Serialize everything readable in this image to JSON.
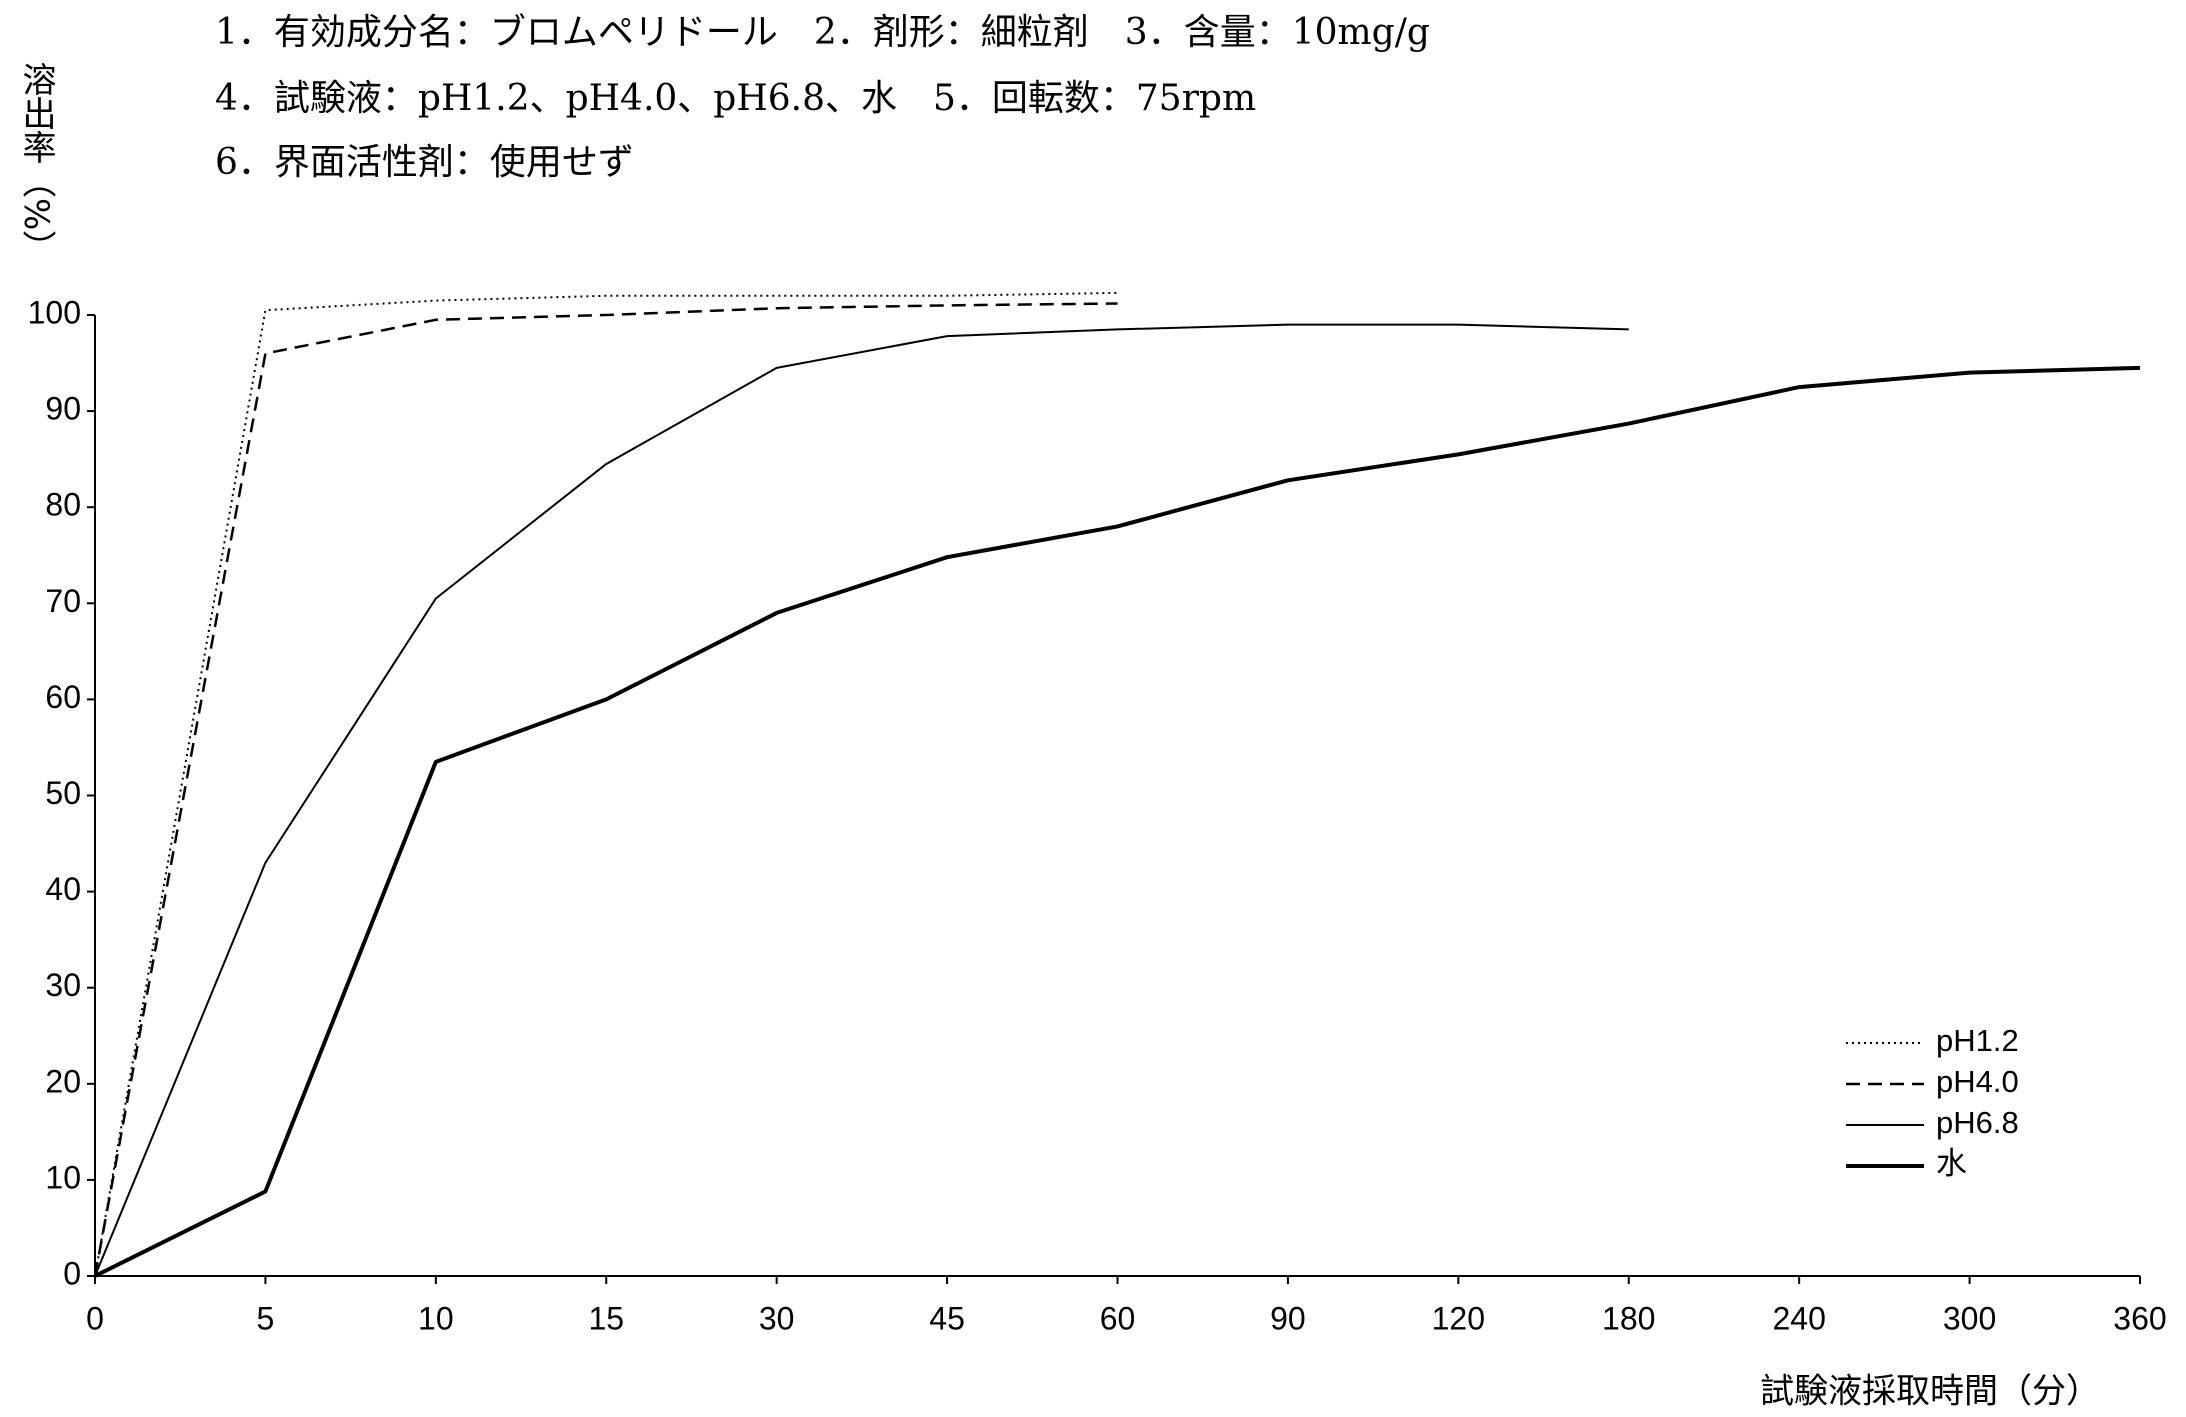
{
  "chart_data": {
    "type": "line",
    "header": [
      "1．有効成分名：ブロムペリドール　2．剤形：細粒剤　3．含量：10mg/g",
      "4．試験液：pH1.2、pH4.0、pH6.8、水　5．回転数：75rpm",
      "6．界面活性剤：使用せず"
    ],
    "y_label": "溶出率（%）",
    "x_label": "試験液採取時間（分）",
    "categories": [
      "0",
      "5",
      "10",
      "15",
      "30",
      "45",
      "60",
      "90",
      "120",
      "180",
      "240",
      "300",
      "360"
    ],
    "series": [
      {
        "name": "pH1.2",
        "color": "#000000",
        "style": "dotted",
        "width": 2,
        "values": [
          0,
          100.5,
          101.5,
          102,
          102,
          102,
          102.3,
          null,
          null,
          null,
          null,
          null,
          null
        ]
      },
      {
        "name": "pH4.0",
        "color": "#000000",
        "style": "dashed",
        "width": 2.5,
        "values": [
          0,
          96,
          99.5,
          100,
          100.7,
          101,
          101.2,
          null,
          null,
          null,
          null,
          null,
          null
        ]
      },
      {
        "name": "pH6.8",
        "color": "#000000",
        "style": "solid",
        "width": 2,
        "values": [
          0,
          43,
          70.5,
          84.5,
          94.5,
          97.8,
          98.5,
          99,
          99,
          98.5,
          null,
          null,
          null
        ]
      },
      {
        "name": "水",
        "color": "#000000",
        "style": "solid",
        "width": 4,
        "values": [
          0,
          8.8,
          53.5,
          60,
          69,
          74.8,
          78,
          82.8,
          85.5,
          88.7,
          92.5,
          94,
          94.5
        ]
      }
    ],
    "ylim": [
      0,
      100
    ],
    "yticks": [
      0,
      10,
      20,
      30,
      40,
      50,
      60,
      70,
      80,
      90,
      100
    ],
    "legend": "lower right"
  }
}
